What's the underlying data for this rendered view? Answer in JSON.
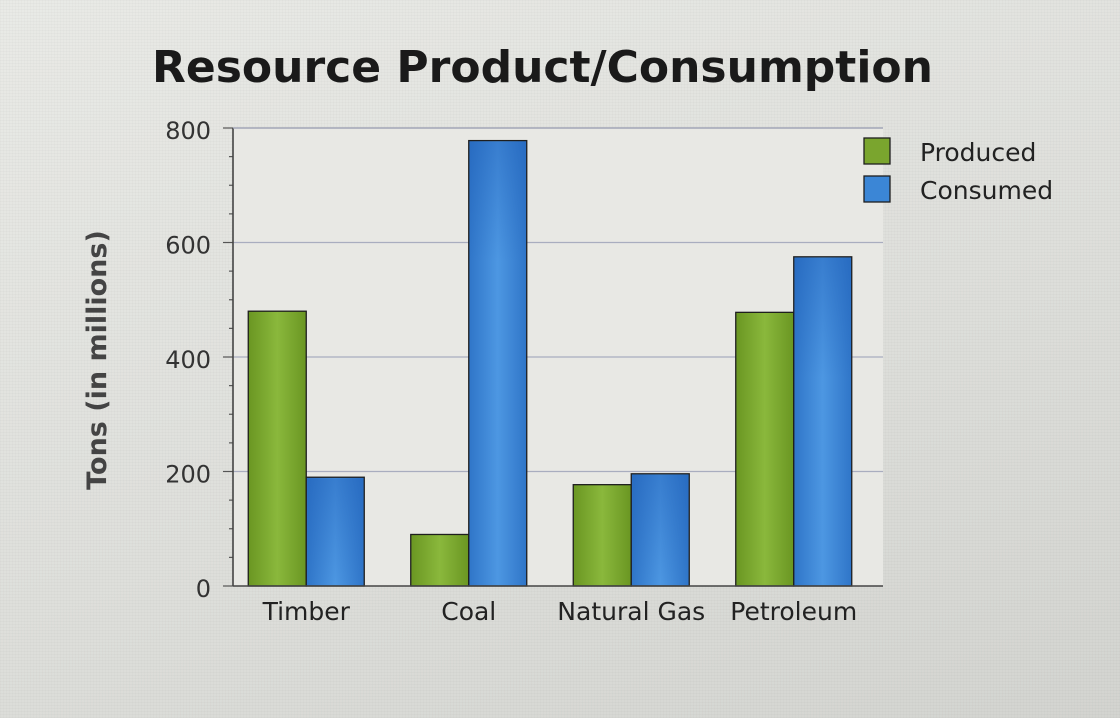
{
  "chart_data": {
    "type": "bar",
    "title": "Resource Product/Consumption",
    "ylabel": "Tons (in millions)",
    "xlabel": "",
    "categories": [
      "Timber",
      "Coal",
      "Natural Gas",
      "Petroleum"
    ],
    "series": [
      {
        "name": "Produced",
        "values": [
          480,
          90,
          177,
          478
        ],
        "color": "#7aa52e"
      },
      {
        "name": "Consumed",
        "values": [
          190,
          778,
          196,
          575
        ],
        "color": "#3b86d6"
      }
    ],
    "ylim": [
      0,
      800
    ],
    "yticks": [
      "0",
      "200",
      "400",
      "600",
      "800"
    ],
    "grid": true,
    "legend_position": "top-right"
  }
}
